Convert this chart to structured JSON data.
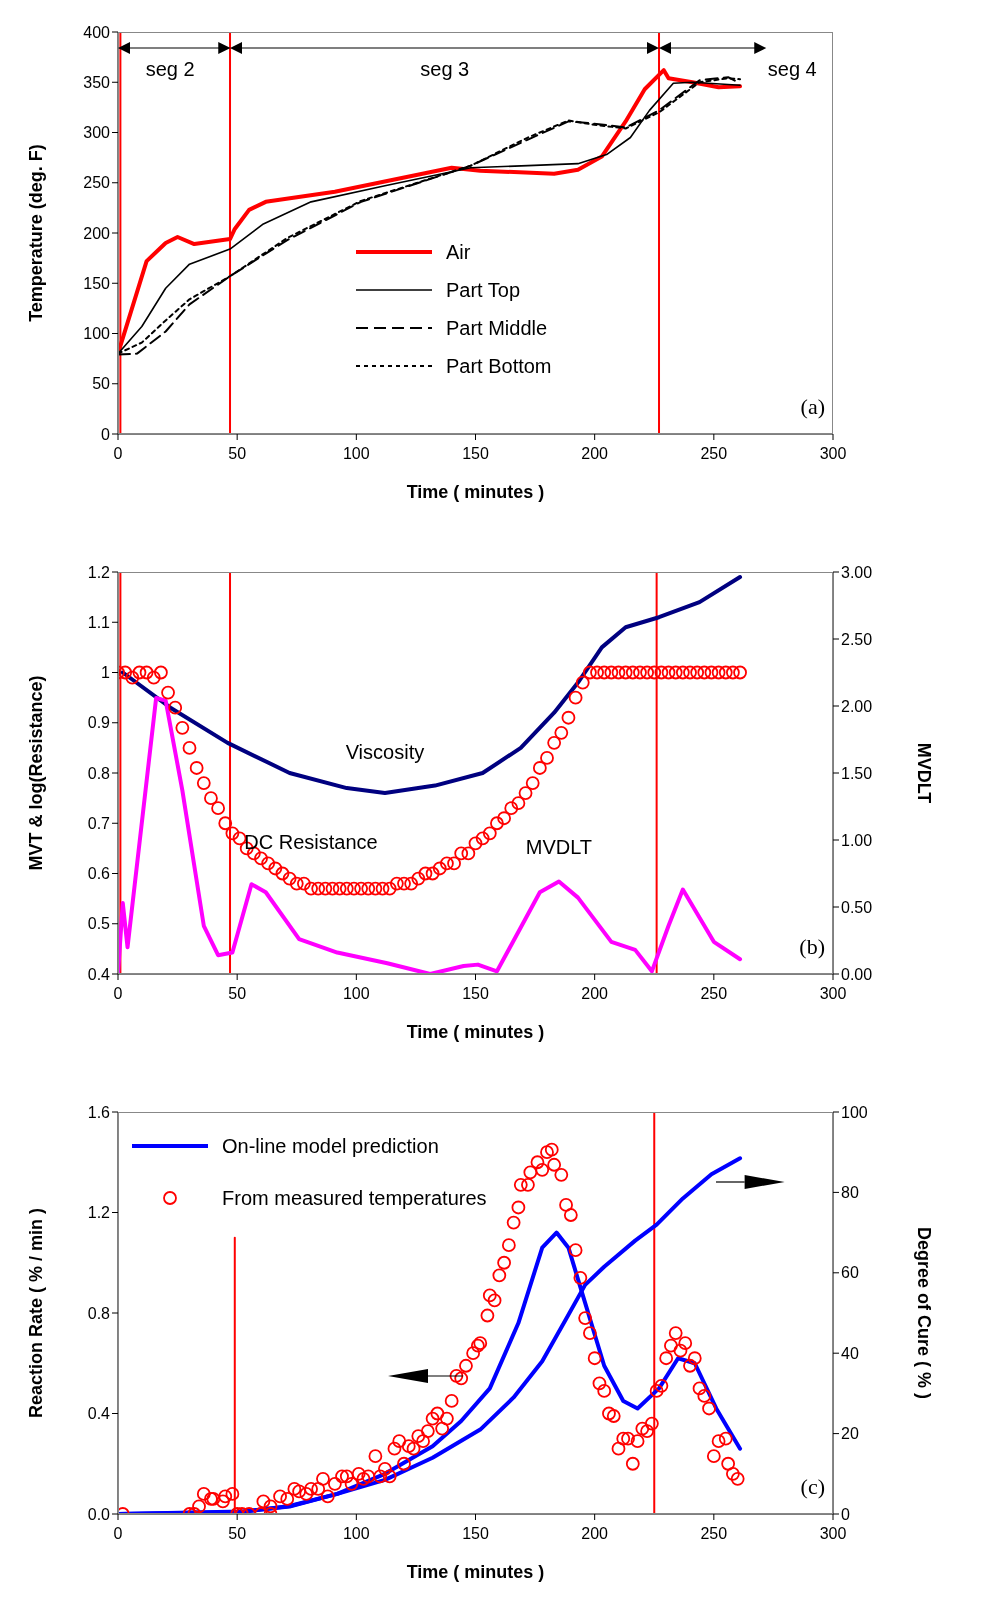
{
  "chart_data": [
    {
      "type": "line",
      "xlabel": "Time ( minutes )",
      "ylabel": "Temperature (deg. F)",
      "xlim": [
        0,
        300
      ],
      "xticks": [
        0,
        50,
        100,
        150,
        200,
        250,
        300
      ],
      "ylim": [
        0,
        400
      ],
      "yticks": [
        0,
        50,
        100,
        150,
        200,
        250,
        300,
        350,
        400
      ],
      "legend": "bottom",
      "series": [
        {
          "name": "Air",
          "color": "#ff0000",
          "line_style": "solid",
          "x": [
            0,
            12,
            20,
            25,
            32,
            47,
            49,
            55,
            62,
            91,
            140,
            152,
            183,
            193,
            203,
            213,
            221,
            229,
            231,
            241,
            252,
            261
          ],
          "values": [
            80,
            172,
            190,
            196,
            189,
            194,
            204,
            223,
            231,
            241,
            265,
            262,
            259,
            263,
            276,
            311,
            343,
            362,
            354,
            350,
            345,
            346
          ]
        },
        {
          "name": "Part Top",
          "color": "#000000",
          "line_style": "solid",
          "x": [
            0,
            10,
            20,
            30,
            47,
            61,
            81,
            112,
            148,
            172,
            193,
            205,
            215,
            223,
            233,
            241,
            261
          ],
          "values": [
            80,
            107,
            145,
            169,
            184,
            209,
            231,
            247,
            265,
            267,
            269,
            278,
            295,
            322,
            349,
            350,
            347
          ]
        },
        {
          "name": "Part Middle",
          "color": "#000000",
          "line_style": "dashed",
          "x": [
            0,
            8,
            20,
            30,
            47,
            71,
            102,
            148,
            172,
            189,
            199,
            213,
            227,
            244,
            256,
            261
          ],
          "values": [
            79,
            80,
            102,
            129,
            157,
            193,
            231,
            267,
            293,
            311,
            309,
            305,
            322,
            352,
            355,
            349
          ]
        },
        {
          "name": "Part Bottom",
          "color": "#000000",
          "line_style": "dotted",
          "x": [
            0,
            10,
            20,
            30,
            47,
            71,
            102,
            148,
            172,
            189,
            199,
            213,
            227,
            244,
            256,
            261
          ],
          "values": [
            80,
            91,
            113,
            134,
            157,
            195,
            232,
            267,
            295,
            312,
            308,
            304,
            320,
            350,
            354,
            353
          ]
        }
      ],
      "ref_lines": [
        {
          "axis": "x",
          "value": 1,
          "color": "#ff0000"
        },
        {
          "axis": "x",
          "value": 47,
          "color": "#ff0000"
        },
        {
          "axis": "x",
          "value": 227,
          "color": "#ff0000"
        }
      ],
      "annotations": [
        "(a)",
        "seg 2",
        "seg 3",
        "seg 4"
      ]
    },
    {
      "type": "line",
      "xlabel": "Time ( minutes )",
      "ylabel": "MVT & log(Resistance)",
      "y2label": "MVDLT",
      "xlim": [
        0,
        300
      ],
      "xticks": [
        0,
        50,
        100,
        150,
        200,
        250,
        300
      ],
      "ylim": [
        0.4,
        1.2
      ],
      "yticks": [
        0.4,
        0.5,
        0.6,
        0.7,
        0.8,
        0.9,
        1,
        1.1,
        1.2
      ],
      "y2lim": [
        0,
        3
      ],
      "y2ticks": [
        {
          "value": 0,
          "label": "0.00"
        },
        {
          "value": 0.5,
          "label": "0.50"
        },
        {
          "value": 1,
          "label": "1.00"
        },
        {
          "value": 1.5,
          "label": "1.50"
        },
        {
          "value": 2,
          "label": "2.00"
        },
        {
          "value": 2.5,
          "label": "2.50"
        },
        {
          "value": 3,
          "label": "3.00"
        }
      ],
      "series": [
        {
          "name": "Viscosity",
          "color": "#000080",
          "x": [
            2,
            22,
            46,
            72,
            96,
            112,
            133,
            153,
            169,
            183,
            193,
            203,
            213,
            227,
            244,
            261
          ],
          "values": [
            1.0,
            0.93,
            0.86,
            0.8,
            0.77,
            0.76,
            0.775,
            0.8,
            0.85,
            0.92,
            0.98,
            1.05,
            1.09,
            1.11,
            1.14,
            1.19
          ]
        },
        {
          "name": "DC Resistance",
          "type": "scatter",
          "marker": "circle",
          "color": "#ff0000",
          "x": [
            0,
            3,
            6,
            9,
            12,
            15,
            18,
            21,
            24,
            27,
            30,
            33,
            36,
            39,
            42,
            45,
            48,
            51,
            54,
            57,
            60,
            63,
            66,
            69,
            72,
            75,
            78,
            81,
            84,
            87,
            90,
            93,
            96,
            99,
            102,
            105,
            108,
            111,
            114,
            117,
            120,
            123,
            126,
            129,
            132,
            135,
            138,
            141,
            144,
            147,
            150,
            153,
            156,
            159,
            162,
            165,
            168,
            171,
            174,
            177,
            180,
            183,
            186,
            189,
            192,
            195,
            198,
            201,
            204,
            207,
            210,
            213,
            216,
            219,
            222,
            225,
            228,
            231,
            234,
            237,
            240,
            243,
            246,
            249,
            252,
            255,
            258,
            261
          ],
          "values": [
            1.0,
            1.0,
            0.99,
            1.0,
            1.0,
            0.99,
            1.0,
            0.96,
            0.93,
            0.89,
            0.85,
            0.81,
            0.78,
            0.75,
            0.73,
            0.7,
            0.68,
            0.67,
            0.65,
            0.64,
            0.63,
            0.62,
            0.61,
            0.6,
            0.59,
            0.58,
            0.58,
            0.57,
            0.57,
            0.57,
            0.57,
            0.57,
            0.57,
            0.57,
            0.57,
            0.57,
            0.57,
            0.57,
            0.57,
            0.58,
            0.58,
            0.58,
            0.59,
            0.6,
            0.6,
            0.61,
            0.62,
            0.62,
            0.64,
            0.64,
            0.66,
            0.67,
            0.68,
            0.7,
            0.71,
            0.73,
            0.74,
            0.76,
            0.78,
            0.81,
            0.83,
            0.86,
            0.88,
            0.91,
            0.95,
            0.98,
            1.0,
            1.0,
            1.0,
            1.0,
            1.0,
            1.0,
            1.0,
            1.0,
            1.0,
            1.0,
            1.0,
            1.0,
            1.0,
            1.0,
            1.0,
            1.0,
            1.0,
            1.0,
            1.0,
            1.0,
            1.0,
            1.0
          ]
        },
        {
          "name": "MVDLT",
          "color": "#ff00ff",
          "axis": "y2",
          "x": [
            0,
            2,
            4,
            16,
            20,
            27,
            36,
            42,
            48,
            56,
            62,
            76,
            92,
            113,
            131,
            145,
            151,
            159,
            177,
            185,
            193,
            207,
            217,
            224,
            231,
            237,
            250,
            261
          ],
          "values": [
            0,
            0.53,
            0.2,
            2.06,
            2.04,
            1.37,
            0.36,
            0.14,
            0.16,
            0.67,
            0.61,
            0.26,
            0.16,
            0.08,
            0,
            0.06,
            0.07,
            0.02,
            0.61,
            0.69,
            0.57,
            0.24,
            0.18,
            0.02,
            0.36,
            0.63,
            0.24,
            0.11
          ]
        }
      ],
      "ref_lines": [
        {
          "axis": "x",
          "value": 1,
          "color": "#ff0000"
        },
        {
          "axis": "x",
          "value": 47,
          "color": "#ff0000"
        },
        {
          "axis": "x",
          "value": 226,
          "color": "#ff0000"
        }
      ],
      "annotations": [
        "(b)"
      ]
    },
    {
      "type": "line",
      "xlabel": "Time ( minutes )",
      "ylabel": "Reaction Rate ( % / min )",
      "y2label": "Degree of Cure ( % )",
      "xlim": [
        0,
        300
      ],
      "xticks": [
        0,
        50,
        100,
        150,
        200,
        250,
        300
      ],
      "ylim": [
        0,
        1.6
      ],
      "yticks": [
        {
          "value": 0,
          "label": "0.0"
        },
        {
          "value": 0.4,
          "label": "0.4"
        },
        {
          "value": 0.8,
          "label": "0.8"
        },
        {
          "value": 1.2,
          "label": "1.2"
        },
        {
          "value": 1.6,
          "label": "1.6"
        }
      ],
      "y2lim": [
        0,
        100
      ],
      "y2ticks": [
        0,
        20,
        40,
        60,
        80,
        100
      ],
      "legend": "top left",
      "series": [
        {
          "name": "On-line model prediction",
          "color": "#0000ff",
          "x": [
            0,
            52,
            72,
            92,
            112,
            132,
            144,
            156,
            168,
            178,
            184,
            189,
            196,
            204,
            212,
            218,
            227,
            235,
            242,
            251,
            261
          ],
          "values": [
            0,
            0.01,
            0.03,
            0.08,
            0.16,
            0.27,
            0.37,
            0.5,
            0.76,
            1.06,
            1.12,
            1.06,
            0.84,
            0.59,
            0.45,
            0.42,
            0.5,
            0.62,
            0.6,
            0.42,
            0.26
          ]
        },
        {
          "name": "From measured temperatures",
          "type": "scatter",
          "marker": "circle",
          "color": "#ff0000",
          "x": [
            2,
            30,
            32,
            34,
            36,
            39,
            40,
            44,
            45,
            48,
            50,
            52,
            55,
            60,
            61,
            64,
            64,
            68,
            71,
            74,
            76,
            79,
            81,
            84,
            86,
            88,
            91,
            94,
            96,
            98,
            101,
            103,
            105,
            108,
            110,
            112,
            114,
            116,
            118,
            120,
            122,
            124,
            126,
            128,
            130,
            132,
            134,
            136,
            138,
            140,
            142,
            144,
            146,
            149,
            151,
            152,
            155,
            156,
            158,
            160,
            162,
            164,
            166,
            168,
            169,
            172,
            173,
            176,
            178,
            180,
            182,
            183,
            186,
            188,
            190,
            192,
            194,
            196,
            198,
            200,
            202,
            204,
            206,
            208,
            210,
            212,
            214,
            216,
            218,
            220,
            222,
            224,
            226,
            228,
            230,
            232,
            234,
            236,
            238,
            240,
            242,
            244,
            246,
            248,
            250,
            252,
            255,
            256,
            258,
            260
          ],
          "values": [
            0,
            0,
            0,
            0.03,
            0.08,
            0.06,
            0.06,
            0.05,
            0.07,
            0.08,
            0,
            0,
            0,
            0,
            0.05,
            0,
            0.03,
            0.07,
            0.06,
            0.1,
            0.09,
            0.08,
            0.1,
            0.1,
            0.14,
            0.07,
            0.12,
            0.15,
            0.15,
            0.12,
            0.16,
            0.14,
            0.15,
            0.23,
            0.15,
            0.18,
            0.15,
            0.26,
            0.29,
            0.2,
            0.27,
            0.26,
            0.31,
            0.29,
            0.33,
            0.38,
            0.4,
            0.34,
            0.38,
            0.45,
            0.55,
            0.54,
            0.59,
            0.64,
            0.67,
            0.68,
            0.79,
            0.87,
            0.85,
            0.95,
            1.0,
            1.07,
            1.16,
            1.22,
            1.31,
            1.31,
            1.36,
            1.4,
            1.37,
            1.44,
            1.45,
            1.39,
            1.35,
            1.23,
            1.19,
            1.05,
            0.94,
            0.78,
            0.72,
            0.62,
            0.52,
            0.49,
            0.4,
            0.39,
            0.26,
            0.3,
            0.3,
            0.2,
            0.29,
            0.34,
            0.33,
            0.36,
            0.49,
            0.51,
            0.62,
            0.67,
            0.72,
            0.65,
            0.68,
            0.59,
            0.62,
            0.5,
            0.47,
            0.42,
            0.23,
            0.29,
            0.3,
            0.2,
            0.16,
            0.14
          ]
        },
        {
          "color": "#0000ff",
          "axis": "y2",
          "x": [
            0,
            52,
            72,
            92,
            112,
            132,
            152,
            166,
            178,
            188,
            196,
            204,
            217,
            226,
            237,
            249,
            261
          ],
          "values": [
            0,
            0.5,
            2,
            5,
            8.5,
            14,
            21,
            29,
            38,
            48.5,
            57,
            61.5,
            68,
            72,
            78.5,
            84.5,
            88.5
          ]
        },
        {
          "color": "#ff0000",
          "x": [
            49,
            49
          ],
          "values": [
            0,
            1.1
          ]
        }
      ],
      "ref_lines": [
        {
          "axis": "x",
          "value": 225,
          "color": "#ff0000"
        }
      ],
      "annotations": [
        "(c)"
      ]
    }
  ]
}
